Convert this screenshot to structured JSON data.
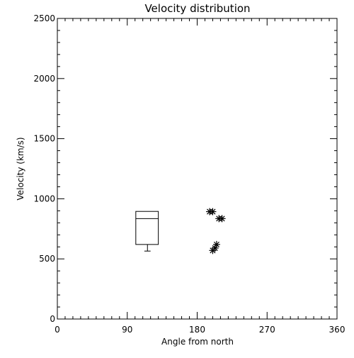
{
  "chart_data": {
    "type": "scatter",
    "title": "Velocity distribution",
    "xlabel": "Angle from north",
    "ylabel": "Velocity (km/s)",
    "xlim": [
      0,
      360
    ],
    "ylim": [
      0,
      2500
    ],
    "x_ticks": [
      0,
      90,
      180,
      270,
      360
    ],
    "x_tick_labels": [
      "0",
      "90",
      "180",
      "270",
      "360"
    ],
    "y_ticks": [
      0,
      500,
      1000,
      1500,
      2000,
      2500
    ],
    "y_tick_labels": [
      "0",
      "500",
      "1000",
      "1500",
      "2000",
      "2500"
    ],
    "x_minor_step": 10,
    "y_minor_step": 100,
    "grid": false,
    "box": {
      "x_left": 101,
      "x_right": 130,
      "q1": 620,
      "median": 835,
      "q3": 895,
      "whisker_low": 565,
      "whisker_cap_x": [
        112,
        120
      ]
    },
    "points": [
      {
        "x": 196,
        "y": 893
      },
      {
        "x": 200,
        "y": 893
      },
      {
        "x": 208,
        "y": 835
      },
      {
        "x": 212,
        "y": 835
      },
      {
        "x": 205,
        "y": 620
      },
      {
        "x": 203,
        "y": 590
      },
      {
        "x": 200,
        "y": 570
      }
    ],
    "marker": "asterisk",
    "colors": {
      "foreground": "#000000",
      "background": "#ffffff"
    }
  }
}
